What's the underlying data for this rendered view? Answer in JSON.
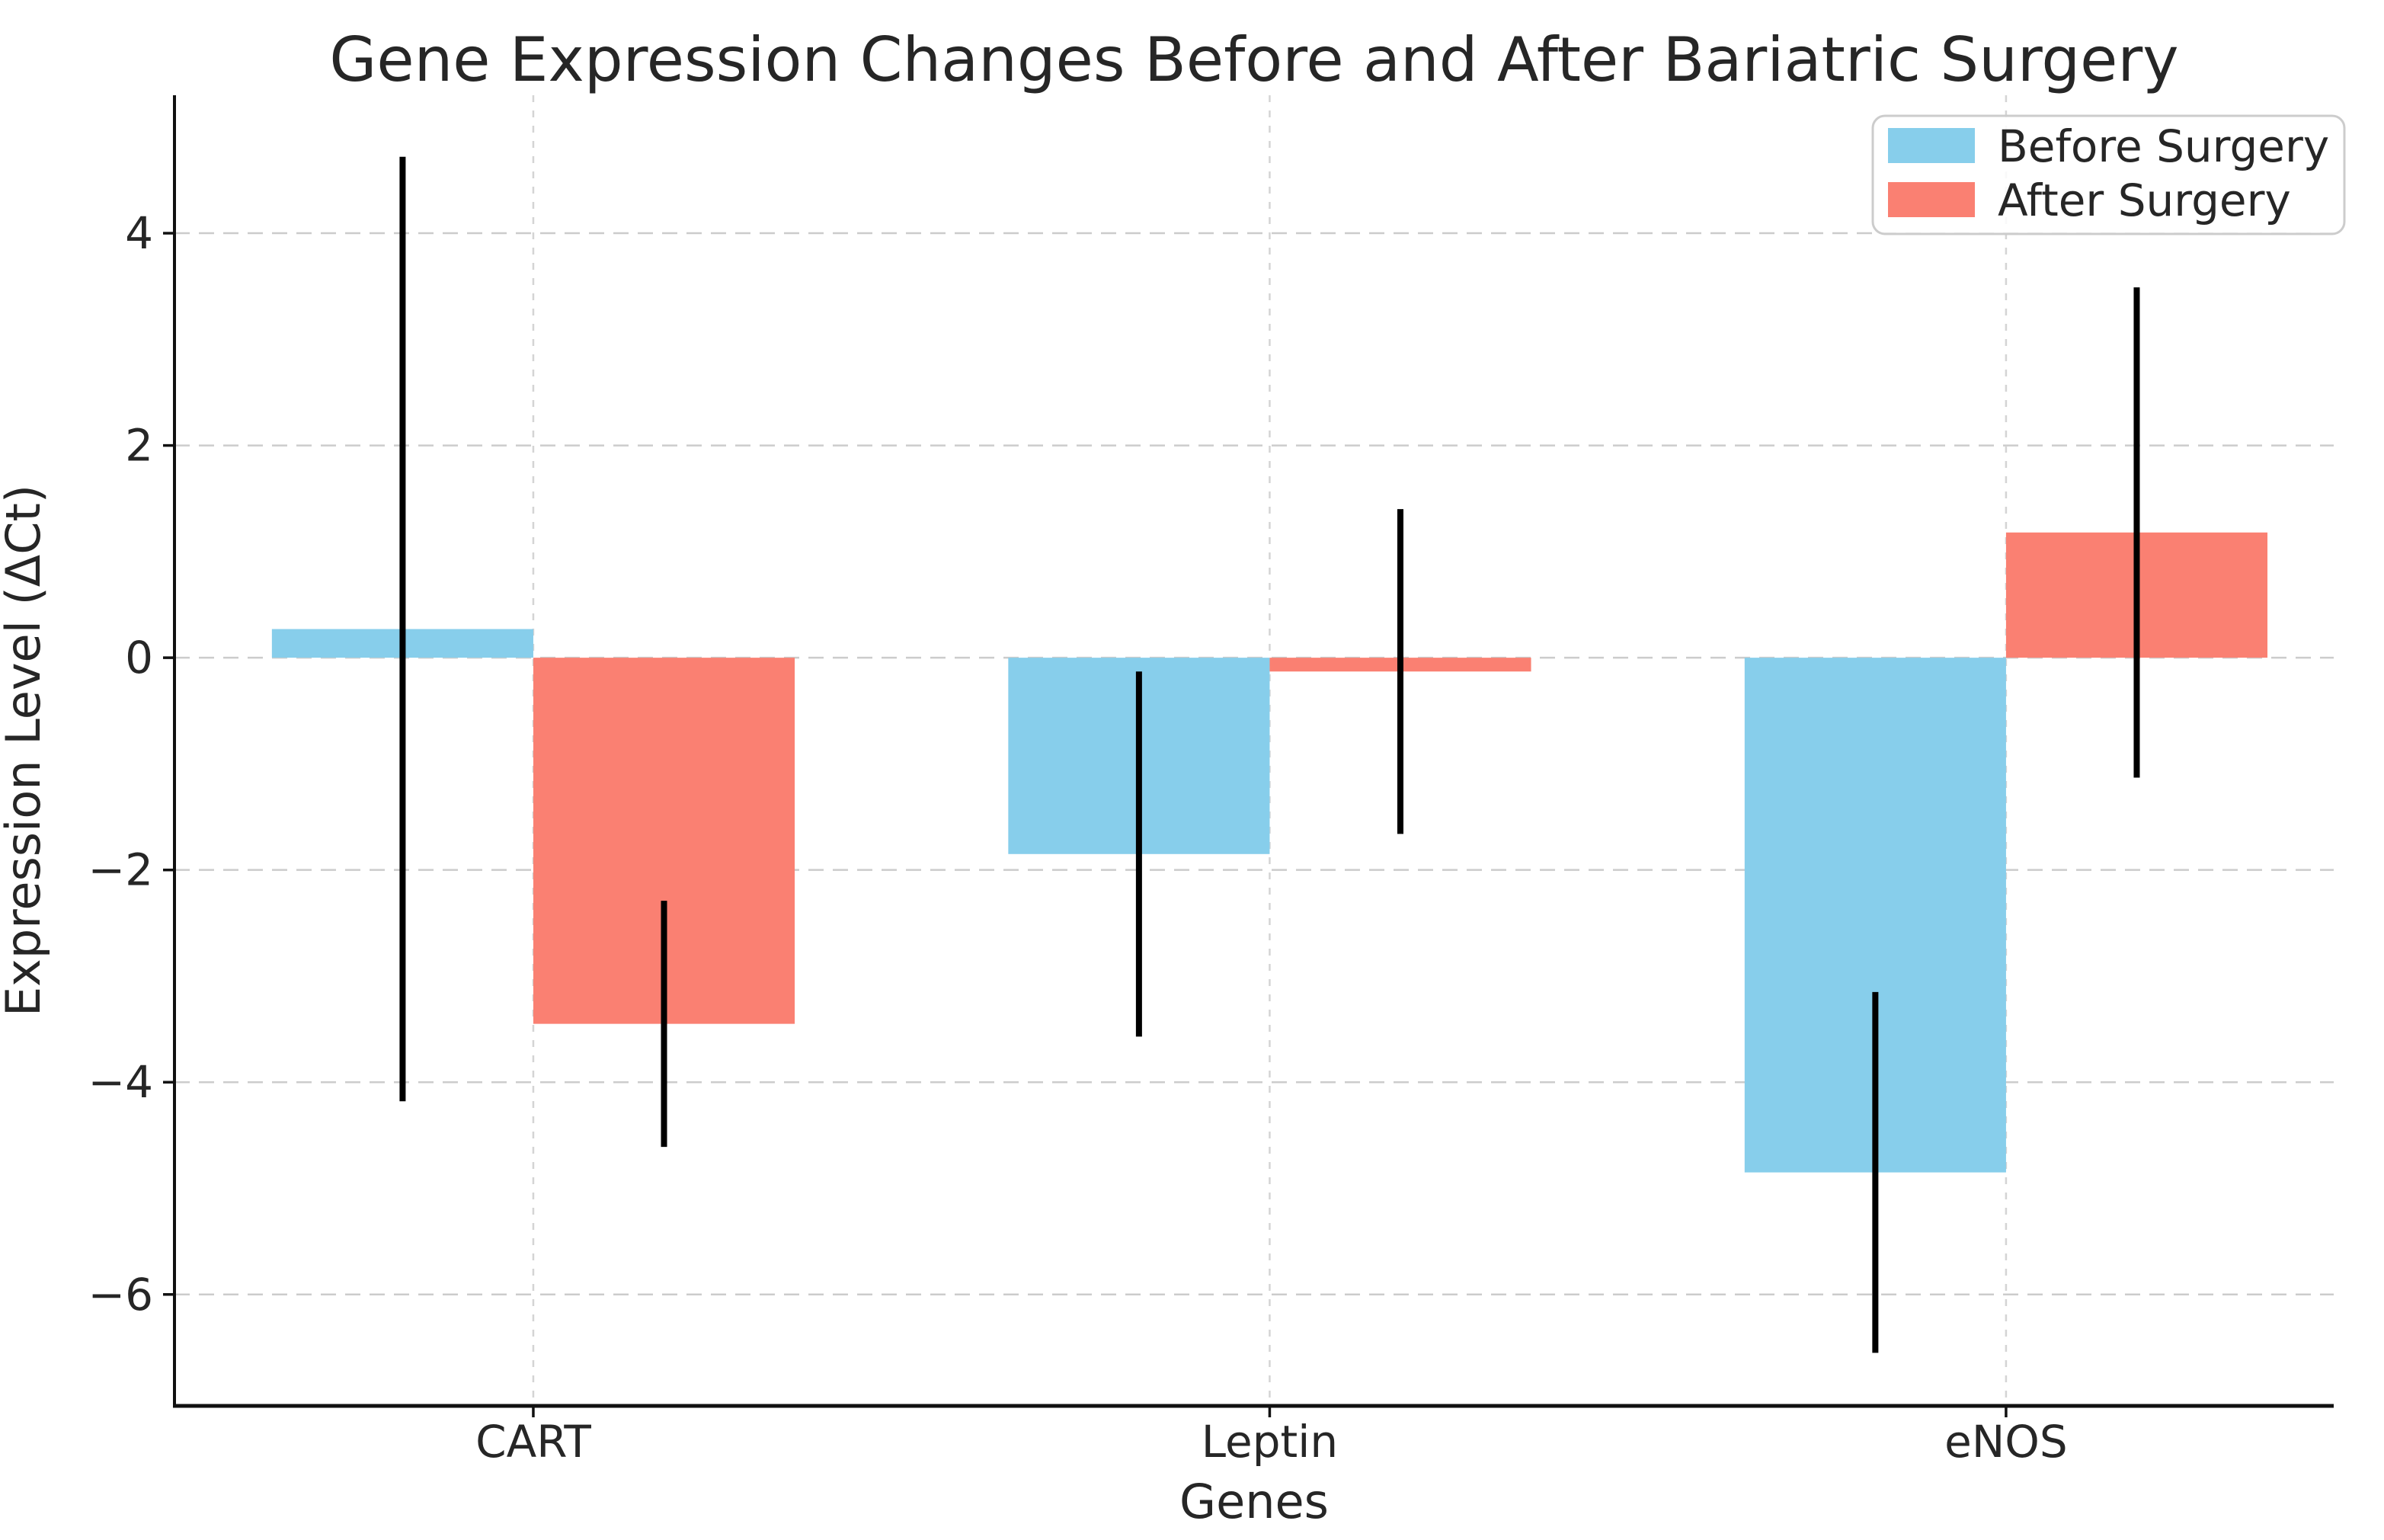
{
  "chart_data": {
    "type": "bar",
    "title": "Gene Expression Changes Before and After Bariatric Surgery",
    "xlabel": "Genes",
    "ylabel": "Expression Level (ΔCt)",
    "categories": [
      "CART",
      "Leptin",
      "eNOS"
    ],
    "series": [
      {
        "name": "Before Surgery",
        "color": "#87CEEB",
        "values": [
          0.27,
          -1.85,
          -4.85
        ],
        "errors": [
          4.45,
          1.72,
          1.7
        ]
      },
      {
        "name": "After Surgery",
        "color": "#FA8072",
        "values": [
          -3.45,
          -0.13,
          1.18
        ],
        "errors": [
          1.16,
          1.53,
          2.31
        ]
      }
    ],
    "yticks": [
      4,
      2,
      0,
      -2,
      -4,
      -6
    ],
    "ylim": [
      -7.05,
      5.3
    ],
    "grid": true,
    "legend": {
      "position": "upper right",
      "entries": [
        "Before Surgery",
        "After Surgery"
      ]
    },
    "colors": {
      "grid": "#cccccc",
      "vgrid": "#d4d4d4",
      "axis": "#111111",
      "text": "#262626",
      "error_bar": "#000000",
      "legend_border": "#cccccc",
      "background": "#ffffff"
    }
  }
}
